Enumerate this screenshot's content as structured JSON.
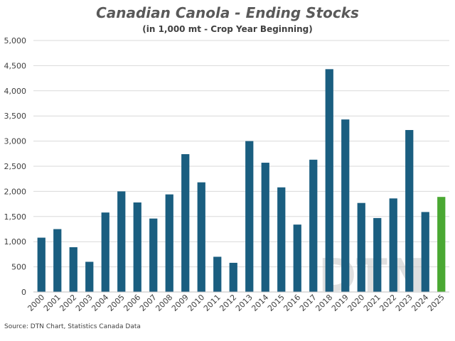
{
  "chart_data": {
    "type": "bar",
    "title": "Canadian Canola - Ending Stocks",
    "subtitle": "(in 1,000 mt - Crop Year Beginning)",
    "xlabel": "",
    "ylabel": "",
    "ylim": [
      0,
      5000
    ],
    "yticks": [
      0,
      500,
      1000,
      1500,
      2000,
      2500,
      3000,
      3500,
      4000,
      4500,
      5000
    ],
    "ytick_labels": [
      "0",
      "500",
      "1,000",
      "1,500",
      "2,000",
      "2,500",
      "3,000",
      "3,500",
      "4,000",
      "4,500",
      "5,000"
    ],
    "categories": [
      "2000",
      "2001",
      "2002",
      "2003",
      "2004",
      "2005",
      "2006",
      "2007",
      "2008",
      "2009",
      "2010",
      "2011",
      "2012",
      "2013",
      "2014",
      "2015",
      "2016",
      "2017",
      "2018",
      "2019",
      "2020",
      "2021",
      "2022",
      "2023",
      "2024",
      "2025"
    ],
    "values": [
      1080,
      1250,
      890,
      600,
      1580,
      2000,
      1780,
      1460,
      1940,
      2740,
      2180,
      700,
      580,
      3000,
      2570,
      2080,
      1340,
      2630,
      4430,
      3430,
      1770,
      1470,
      1860,
      3220,
      1590,
      1890
    ],
    "highlight_index": 25,
    "grid": true,
    "source": "Source: DTN Chart, Statistics Canada Data",
    "watermark": "DTN",
    "colors": {
      "bar": "#1a5e80",
      "highlight": "#4aa832",
      "grid": "#d9d9d9",
      "axis": "#bfbfbf"
    }
  }
}
